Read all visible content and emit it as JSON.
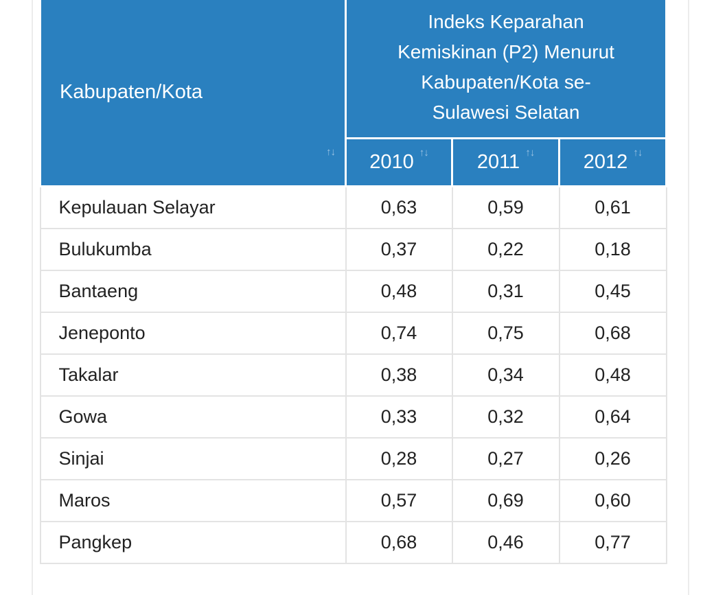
{
  "table": {
    "header": {
      "region_label": "Kabupaten/Kota",
      "group_title": "Indeks Keparahan Kemiskinan (P2) Menurut Kabupaten/Kota se-Sulawesi Selatan",
      "group_title_lines": [
        "Indeks Keparahan",
        "Kemiskinan (P2) Menurut",
        "Kabupaten/Kota se-",
        "Sulawesi Selatan"
      ],
      "years": [
        "2010",
        "2011",
        "2012"
      ],
      "sort_glyph": "↑↓"
    },
    "rows": [
      {
        "name": "Kepulauan Selayar",
        "v2010": "0,63",
        "v2011": "0,59",
        "v2012": "0,61"
      },
      {
        "name": "Bulukumba",
        "v2010": "0,37",
        "v2011": "0,22",
        "v2012": "0,18"
      },
      {
        "name": "Bantaeng",
        "v2010": "0,48",
        "v2011": "0,31",
        "v2012": "0,45"
      },
      {
        "name": "Jeneponto",
        "v2010": "0,74",
        "v2011": "0,75",
        "v2012": "0,68"
      },
      {
        "name": "Takalar",
        "v2010": "0,38",
        "v2011": "0,34",
        "v2012": "0,48"
      },
      {
        "name": "Gowa",
        "v2010": "0,33",
        "v2011": "0,32",
        "v2012": "0,64"
      },
      {
        "name": "Sinjai",
        "v2010": "0,28",
        "v2011": "0,27",
        "v2012": "0,26"
      },
      {
        "name": "Maros",
        "v2010": "0,57",
        "v2011": "0,69",
        "v2012": "0,60"
      },
      {
        "name": "Pangkep",
        "v2010": "0,68",
        "v2011": "0,46",
        "v2012": "0,77"
      }
    ]
  },
  "colors": {
    "header_bg": "#2a80bf",
    "header_text": "#ffffff",
    "cell_border": "#e3e3e3",
    "body_text": "#222222"
  }
}
